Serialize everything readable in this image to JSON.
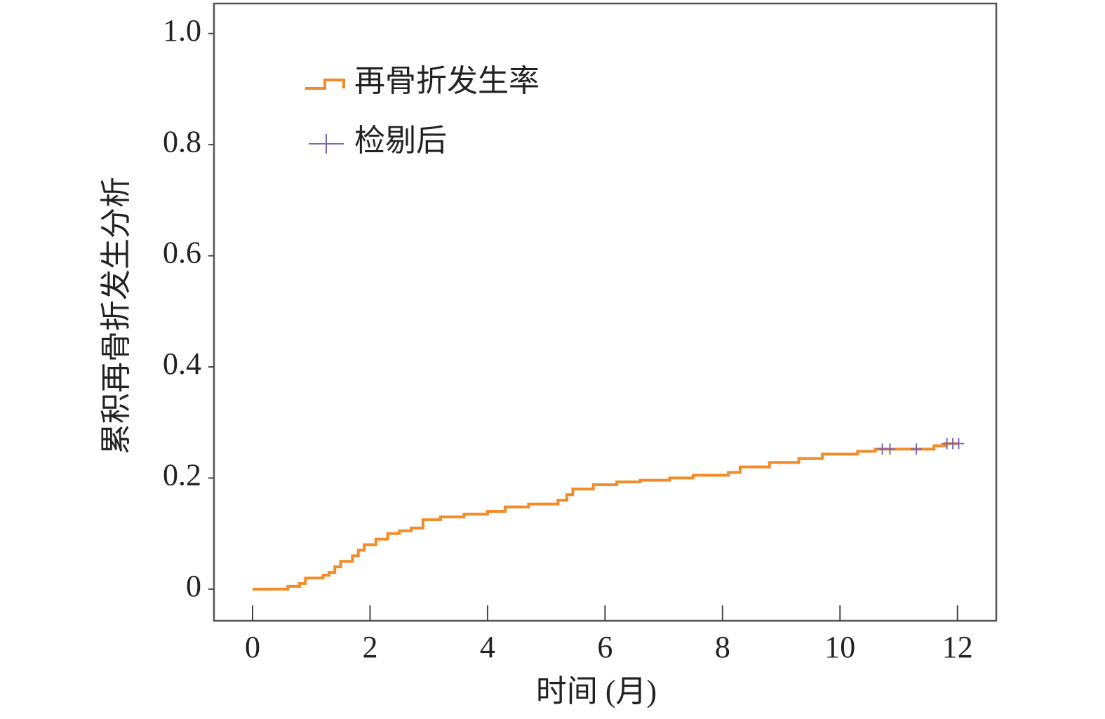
{
  "chart_data": {
    "type": "line",
    "step": true,
    "xlabel": "时间 (月)",
    "ylabel": "累积再骨折发生分析",
    "xlim": [
      -0.657,
      12.66
    ],
    "ylim": [
      -0.057,
      1.054
    ],
    "xticks": [
      0,
      2,
      4,
      6,
      8,
      10,
      12
    ],
    "yticks": [
      0,
      0.2,
      0.4,
      0.6,
      0.8,
      {
        "value": 1,
        "label": "1.0"
      }
    ],
    "legend": "upper left",
    "series": [
      {
        "name": "再骨折发生率",
        "color": "#f28c28",
        "marker": "step",
        "x": [
          0,
          0.5,
          0.6,
          0.8,
          0.9,
          1.2,
          1.3,
          1.4,
          1.5,
          1.7,
          1.8,
          1.9,
          2.1,
          2.3,
          2.5,
          2.7,
          2.9,
          3.2,
          3.6,
          4.0,
          4.3,
          4.7,
          5.2,
          5.35,
          5.45,
          5.8,
          6.2,
          6.6,
          7.1,
          7.5,
          8.1,
          8.3,
          8.8,
          9.3,
          9.7,
          10.3,
          10.6,
          11.6,
          11.8,
          12.0
        ],
        "values": [
          0,
          0,
          0.005,
          0.01,
          0.02,
          0.025,
          0.03,
          0.04,
          0.05,
          0.06,
          0.07,
          0.08,
          0.09,
          0.1,
          0.105,
          0.11,
          0.125,
          0.13,
          0.135,
          0.14,
          0.148,
          0.153,
          0.16,
          0.17,
          0.18,
          0.188,
          0.193,
          0.196,
          0.2,
          0.205,
          0.21,
          0.22,
          0.228,
          0.235,
          0.243,
          0.248,
          0.252,
          0.258,
          0.262,
          0.262
        ]
      },
      {
        "name": "检剔后",
        "color": "#7b68b0",
        "marker": "plus",
        "x": [
          10.72,
          10.85,
          11.3,
          11.82,
          11.92,
          12.02
        ],
        "values": [
          0.252,
          0.252,
          0.252,
          0.262,
          0.262,
          0.262
        ]
      }
    ]
  }
}
